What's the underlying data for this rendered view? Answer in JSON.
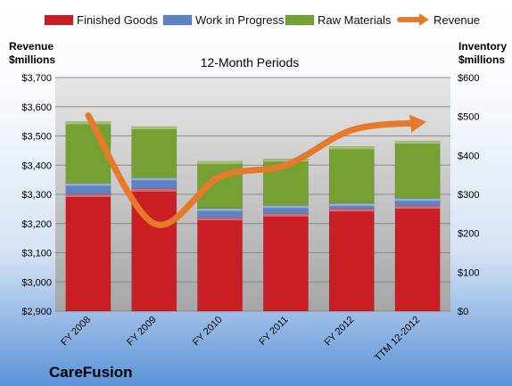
{
  "chart_data": {
    "type": "bar",
    "stacked": true,
    "title": "12-Month Periods",
    "company": "CareFusion",
    "categories": [
      "FY 2008",
      "FY 2009",
      "FY 2010",
      "FY 2011",
      "FY 2012",
      "TTM 12-2012"
    ],
    "series": [
      {
        "name": "Finished Goods",
        "axis": "right",
        "color": "#c81e24",
        "values": [
          300,
          314,
          240,
          250,
          263,
          270
        ]
      },
      {
        "name": "Work in Progress",
        "axis": "right",
        "color": "#5f83c2",
        "values": [
          29,
          29,
          24,
          22,
          14,
          20
        ]
      },
      {
        "name": "Raw Materials",
        "axis": "right",
        "color": "#76a032",
        "values": [
          158,
          131,
          121,
          119,
          146,
          147
        ]
      },
      {
        "name": "Revenue",
        "axis": "left",
        "type": "line",
        "color": "#e67a2a",
        "values": [
          3570,
          3200,
          3360,
          3400,
          3520,
          3545
        ]
      }
    ],
    "y_left": {
      "title_lines": [
        "Revenue",
        "$millions"
      ],
      "min": 2900,
      "max": 3700,
      "step": 100,
      "prefix": "$"
    },
    "y_right": {
      "title_lines": [
        "Inventory",
        "$millions"
      ],
      "min": 0,
      "max": 600,
      "step": 100,
      "prefix": "$"
    },
    "grid": true,
    "legend_position": "top"
  }
}
